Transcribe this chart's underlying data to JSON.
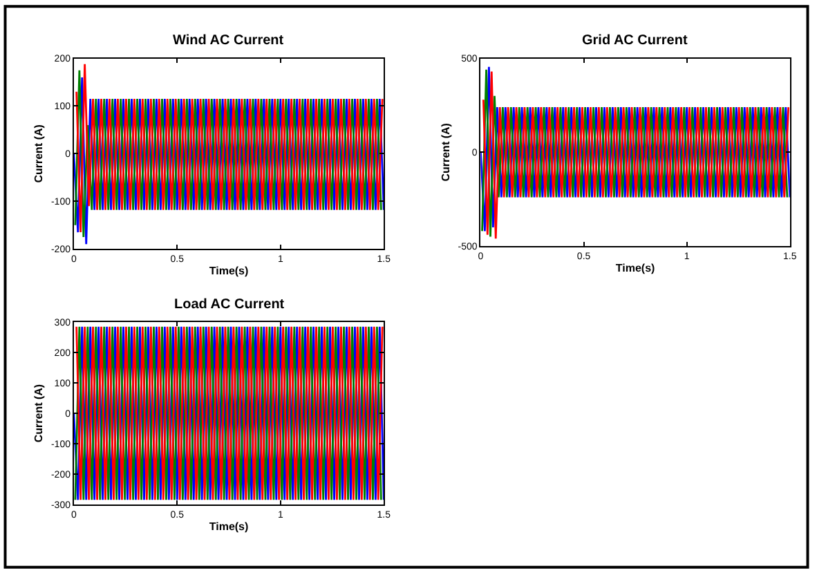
{
  "chart_data": [
    {
      "type": "line",
      "title": "Wind AC Current",
      "xlabel": "Time(s)",
      "ylabel": "Current (A)",
      "xlim": [
        0,
        1.5
      ],
      "xticks": [
        0,
        0.5,
        1,
        1.5
      ],
      "ylim": [
        -200,
        200
      ],
      "yticks": [
        -200,
        -100,
        0,
        100,
        200
      ],
      "series": [
        {
          "color": "#0000ff",
          "x": [
            0,
            0.02,
            0.04,
            0.06,
            0.08,
            0.1,
            0.12,
            0.14,
            0.16,
            0.18,
            0.2,
            0.22,
            0.24,
            0.26,
            0.28,
            0.3,
            0.32,
            0.34,
            0.36,
            0.38,
            0.4,
            0.42,
            0.44,
            0.46,
            0.48,
            0.5,
            0.52,
            0.54,
            0.56,
            0.58,
            0.6,
            0.62,
            0.64,
            0.66,
            0.68,
            0.7,
            0.72,
            0.74,
            0.76,
            0.78,
            0.8,
            0.82,
            0.84,
            0.86,
            0.88,
            0.9,
            0.92,
            0.94,
            0.96,
            0.98,
            1,
            1.02,
            1.04,
            1.06,
            1.08,
            1.1,
            1.12,
            1.14,
            1.16,
            1.18,
            1.2,
            1.22,
            1.24,
            1.26,
            1.28,
            1.3,
            1.32,
            1.34,
            1.36,
            1.38,
            1.4,
            1.42,
            1.44,
            1.46,
            1.48,
            1.5
          ],
          "values": [
            0,
            -165,
            160,
            -190,
            115,
            -118,
            115,
            -118,
            115,
            -118,
            115,
            -118,
            115,
            -118,
            115,
            -118,
            115,
            -118,
            115,
            -118,
            115,
            -118,
            115,
            -118,
            115,
            -118,
            115,
            -118,
            115,
            -118,
            115,
            -118,
            115,
            -118,
            115,
            -118,
            115,
            -118,
            115,
            -118,
            115,
            -118,
            115,
            -118,
            115,
            -118,
            115,
            -118,
            115,
            -118,
            115,
            -118,
            115,
            -118,
            115,
            -118,
            115,
            -118,
            115,
            -118,
            115,
            -118,
            115,
            -118,
            115,
            -118,
            115,
            -118,
            115,
            -118,
            115,
            -118,
            115,
            -118,
            115,
            -118
          ]
        },
        {
          "color": "#008000",
          "x": [
            0.007,
            0.027,
            0.047,
            0.067,
            0.087,
            0.107,
            0.127,
            0.147,
            0.167,
            0.187,
            0.207,
            0.227,
            0.247,
            0.267,
            0.287,
            0.307,
            0.327,
            0.347,
            0.367,
            0.387,
            0.407,
            0.427,
            0.447,
            0.467,
            0.487,
            0.507,
            0.527,
            0.547,
            0.567,
            0.587,
            0.607,
            0.627,
            0.647,
            0.667,
            0.687,
            0.707,
            0.727,
            0.747,
            0.767,
            0.787,
            0.807,
            0.827,
            0.847,
            0.867,
            0.887,
            0.907,
            0.927,
            0.947,
            0.967,
            0.987,
            1.007,
            1.027,
            1.047,
            1.067,
            1.087,
            1.107,
            1.127,
            1.147,
            1.167,
            1.187,
            1.207,
            1.227,
            1.247,
            1.267,
            1.287,
            1.307,
            1.327,
            1.347,
            1.367,
            1.387,
            1.407,
            1.427,
            1.447,
            1.467,
            1.487
          ],
          "values": [
            -150,
            175,
            -175,
            60,
            -118,
            115,
            -118,
            115,
            -118,
            115,
            -118,
            115,
            -118,
            115,
            -118,
            115,
            -118,
            115,
            -118,
            115,
            -118,
            115,
            -118,
            115,
            -118,
            115,
            -118,
            115,
            -118,
            115,
            -118,
            115,
            -118,
            115,
            -118,
            115,
            -118,
            115,
            -118,
            115,
            -118,
            115,
            -118,
            115,
            -118,
            115,
            -118,
            115,
            -118,
            115,
            -118,
            115,
            -118,
            115,
            -118,
            115,
            -118,
            115,
            -118,
            115,
            -118,
            115,
            -118,
            115,
            -118,
            115,
            -118,
            115,
            -118,
            115,
            -118,
            115,
            -118,
            115,
            -118
          ]
        },
        {
          "color": "#ff0000",
          "x": [
            0.013,
            0.033,
            0.053,
            0.073,
            0.093,
            0.113,
            0.133,
            0.153,
            0.173,
            0.193,
            0.213,
            0.233,
            0.253,
            0.273,
            0.293,
            0.313,
            0.333,
            0.353,
            0.373,
            0.393,
            0.413,
            0.433,
            0.453,
            0.473,
            0.493,
            0.513,
            0.533,
            0.553,
            0.573,
            0.593,
            0.613,
            0.633,
            0.653,
            0.673,
            0.693,
            0.713,
            0.733,
            0.753,
            0.773,
            0.793,
            0.813,
            0.833,
            0.853,
            0.873,
            0.893,
            0.913,
            0.933,
            0.953,
            0.973,
            0.993,
            1.013,
            1.033,
            1.053,
            1.073,
            1.093,
            1.113,
            1.133,
            1.153,
            1.173,
            1.193,
            1.213,
            1.233,
            1.253,
            1.273,
            1.293,
            1.313,
            1.333,
            1.353,
            1.373,
            1.393,
            1.413,
            1.433,
            1.453,
            1.473,
            1.493
          ],
          "values": [
            130,
            -165,
            188,
            -110,
            115,
            -118,
            115,
            -118,
            115,
            -118,
            115,
            -118,
            115,
            -118,
            115,
            -118,
            115,
            -118,
            115,
            -118,
            115,
            -118,
            115,
            -118,
            115,
            -118,
            115,
            -118,
            115,
            -118,
            115,
            -118,
            115,
            -118,
            115,
            -118,
            115,
            -118,
            115,
            -118,
            115,
            -118,
            115,
            -118,
            115,
            -118,
            115,
            -118,
            115,
            -118,
            115,
            -118,
            115,
            -118,
            115,
            -118,
            115,
            -118,
            115,
            -118,
            115,
            -118,
            115,
            -118,
            115,
            -118,
            115,
            -118,
            115,
            -118,
            115,
            -118,
            115,
            -118,
            115
          ]
        }
      ]
    },
    {
      "type": "line",
      "title": "Grid AC Current",
      "xlabel": "Time(s)",
      "ylabel": "Current (A)",
      "xlim": [
        0,
        1.5
      ],
      "xticks": [
        0,
        0.5,
        1,
        1.5
      ],
      "ylim": [
        -500,
        500
      ],
      "yticks": [
        -500,
        0,
        500
      ],
      "series": [
        {
          "color": "#0000ff",
          "x": [
            0,
            0.02,
            0.04,
            0.06,
            0.08,
            0.1,
            0.12,
            0.14,
            0.16,
            0.18,
            0.2,
            0.22,
            0.24,
            0.26,
            0.28,
            0.3,
            0.32,
            0.34,
            0.36,
            0.38,
            0.4,
            0.42,
            0.44,
            0.46,
            0.48,
            0.5,
            0.52,
            0.54,
            0.56,
            0.58,
            0.6,
            0.62,
            0.64,
            0.66,
            0.68,
            0.7,
            0.72,
            0.74,
            0.76,
            0.78,
            0.8,
            0.82,
            0.84,
            0.86,
            0.88,
            0.9,
            0.92,
            0.94,
            0.96,
            0.98,
            1,
            1.02,
            1.04,
            1.06,
            1.08,
            1.1,
            1.12,
            1.14,
            1.16,
            1.18,
            1.2,
            1.22,
            1.24,
            1.26,
            1.28,
            1.3,
            1.32,
            1.34,
            1.36,
            1.38,
            1.4,
            1.42,
            1.44,
            1.46,
            1.48,
            1.5
          ],
          "values": [
            0,
            -420,
            455,
            -400,
            240,
            -240,
            240,
            -240,
            240,
            -240,
            240,
            -240,
            240,
            -240,
            240,
            -240,
            240,
            -240,
            240,
            -240,
            240,
            -240,
            240,
            -240,
            240,
            -240,
            240,
            -240,
            240,
            -240,
            240,
            -240,
            240,
            -240,
            240,
            -240,
            240,
            -240,
            240,
            -240,
            240,
            -240,
            240,
            -240,
            240,
            -240,
            240,
            -240,
            240,
            -240,
            240,
            -240,
            240,
            -240,
            240,
            -240,
            240,
            -240,
            240,
            -240,
            240,
            -240,
            240,
            -240,
            240,
            -240,
            240,
            -240,
            240,
            -240,
            240,
            -240,
            240,
            -240,
            240,
            -240
          ]
        },
        {
          "color": "#008000",
          "x": [
            0.007,
            0.027,
            0.047,
            0.067,
            0.087,
            0.107,
            0.127,
            0.147,
            0.167,
            0.187,
            0.207,
            0.227,
            0.247,
            0.267,
            0.287,
            0.307,
            0.327,
            0.347,
            0.367,
            0.387,
            0.407,
            0.427,
            0.447,
            0.467,
            0.487,
            0.507,
            0.527,
            0.547,
            0.567,
            0.587,
            0.607,
            0.627,
            0.647,
            0.667,
            0.687,
            0.707,
            0.727,
            0.747,
            0.767,
            0.787,
            0.807,
            0.827,
            0.847,
            0.867,
            0.887,
            0.907,
            0.927,
            0.947,
            0.967,
            0.987,
            1.007,
            1.027,
            1.047,
            1.067,
            1.087,
            1.107,
            1.127,
            1.147,
            1.167,
            1.187,
            1.207,
            1.227,
            1.247,
            1.267,
            1.287,
            1.307,
            1.327,
            1.347,
            1.367,
            1.387,
            1.407,
            1.427,
            1.447,
            1.467,
            1.487
          ],
          "values": [
            -420,
            440,
            -450,
            300,
            -240,
            240,
            -240,
            240,
            -240,
            240,
            -240,
            240,
            -240,
            240,
            -240,
            240,
            -240,
            240,
            -240,
            240,
            -240,
            240,
            -240,
            240,
            -240,
            240,
            -240,
            240,
            -240,
            240,
            -240,
            240,
            -240,
            240,
            -240,
            240,
            -240,
            240,
            -240,
            240,
            -240,
            240,
            -240,
            240,
            -240,
            240,
            -240,
            240,
            -240,
            240,
            -240,
            240,
            -240,
            240,
            -240,
            240,
            -240,
            240,
            -240,
            240,
            -240,
            240,
            -240,
            240,
            -240,
            240,
            -240,
            240,
            -240,
            240,
            -240,
            240,
            -240,
            240,
            -240
          ]
        },
        {
          "color": "#ff0000",
          "x": [
            0.013,
            0.033,
            0.053,
            0.073,
            0.093,
            0.113,
            0.133,
            0.153,
            0.173,
            0.193,
            0.213,
            0.233,
            0.253,
            0.273,
            0.293,
            0.313,
            0.333,
            0.353,
            0.373,
            0.393,
            0.413,
            0.433,
            0.453,
            0.473,
            0.493,
            0.513,
            0.533,
            0.553,
            0.573,
            0.593,
            0.613,
            0.633,
            0.653,
            0.673,
            0.693,
            0.713,
            0.733,
            0.753,
            0.773,
            0.793,
            0.813,
            0.833,
            0.853,
            0.873,
            0.893,
            0.913,
            0.933,
            0.953,
            0.973,
            0.993,
            1.013,
            1.033,
            1.053,
            1.073,
            1.093,
            1.113,
            1.133,
            1.153,
            1.173,
            1.193,
            1.213,
            1.233,
            1.253,
            1.273,
            1.293,
            1.313,
            1.333,
            1.353,
            1.373,
            1.393,
            1.413,
            1.433,
            1.453,
            1.473,
            1.493
          ],
          "values": [
            280,
            -440,
            430,
            -460,
            240,
            -240,
            240,
            -240,
            240,
            -240,
            240,
            -240,
            240,
            -240,
            240,
            -240,
            240,
            -240,
            240,
            -240,
            240,
            -240,
            240,
            -240,
            240,
            -240,
            240,
            -240,
            240,
            -240,
            240,
            -240,
            240,
            -240,
            240,
            -240,
            240,
            -240,
            240,
            -240,
            240,
            -240,
            240,
            -240,
            240,
            -240,
            240,
            -240,
            240,
            -240,
            240,
            -240,
            240,
            -240,
            240,
            -240,
            240,
            -240,
            240,
            -240,
            240,
            -240,
            240,
            -240,
            240,
            -240,
            240,
            -240,
            240,
            -240,
            240,
            -240,
            240,
            -240,
            240
          ]
        }
      ]
    },
    {
      "type": "line",
      "title": "Load AC Current",
      "xlabel": "Time(s)",
      "ylabel": "Current (A)",
      "xlim": [
        0,
        1.5
      ],
      "xticks": [
        0,
        0.5,
        1,
        1.5
      ],
      "ylim": [
        -300,
        300
      ],
      "yticks": [
        -300,
        -200,
        -100,
        0,
        100,
        200,
        300
      ],
      "series": [
        {
          "color": "#0000ff",
          "x": [
            0,
            0.02,
            0.04,
            0.06,
            0.08,
            0.1,
            0.12,
            0.14,
            0.16,
            0.18,
            0.2,
            0.22,
            0.24,
            0.26,
            0.28,
            0.3,
            0.32,
            0.34,
            0.36,
            0.38,
            0.4,
            0.42,
            0.44,
            0.46,
            0.48,
            0.5,
            0.52,
            0.54,
            0.56,
            0.58,
            0.6,
            0.62,
            0.64,
            0.66,
            0.68,
            0.7,
            0.72,
            0.74,
            0.76,
            0.78,
            0.8,
            0.82,
            0.84,
            0.86,
            0.88,
            0.9,
            0.92,
            0.94,
            0.96,
            0.98,
            1,
            1.02,
            1.04,
            1.06,
            1.08,
            1.1,
            1.12,
            1.14,
            1.16,
            1.18,
            1.2,
            1.22,
            1.24,
            1.26,
            1.28,
            1.3,
            1.32,
            1.34,
            1.36,
            1.38,
            1.4,
            1.42,
            1.44,
            1.46,
            1.48,
            1.5
          ],
          "values": [
            0,
            -285,
            285,
            -285,
            285,
            -285,
            285,
            -285,
            285,
            -285,
            285,
            -285,
            285,
            -285,
            285,
            -285,
            285,
            -285,
            285,
            -285,
            285,
            -285,
            285,
            -285,
            285,
            -285,
            285,
            -285,
            285,
            -285,
            285,
            -285,
            285,
            -285,
            285,
            -285,
            285,
            -285,
            285,
            -285,
            285,
            -285,
            285,
            -285,
            285,
            -285,
            285,
            -285,
            285,
            -285,
            285,
            -285,
            285,
            -285,
            285,
            -285,
            285,
            -285,
            285,
            -285,
            285,
            -285,
            285,
            -285,
            285,
            -285,
            285,
            -285,
            285,
            -285,
            285,
            -285,
            285,
            -285,
            285,
            -285
          ]
        },
        {
          "color": "#008000",
          "x": [
            0.007,
            0.027,
            0.047,
            0.067,
            0.087,
            0.107,
            0.127,
            0.147,
            0.167,
            0.187,
            0.207,
            0.227,
            0.247,
            0.267,
            0.287,
            0.307,
            0.327,
            0.347,
            0.367,
            0.387,
            0.407,
            0.427,
            0.447,
            0.467,
            0.487,
            0.507,
            0.527,
            0.547,
            0.567,
            0.587,
            0.607,
            0.627,
            0.647,
            0.667,
            0.687,
            0.707,
            0.727,
            0.747,
            0.767,
            0.787,
            0.807,
            0.827,
            0.847,
            0.867,
            0.887,
            0.907,
            0.927,
            0.947,
            0.967,
            0.987,
            1.007,
            1.027,
            1.047,
            1.067,
            1.087,
            1.107,
            1.127,
            1.147,
            1.167,
            1.187,
            1.207,
            1.227,
            1.247,
            1.267,
            1.287,
            1.307,
            1.327,
            1.347,
            1.367,
            1.387,
            1.407,
            1.427,
            1.447,
            1.467,
            1.487
          ],
          "values": [
            -285,
            285,
            -285,
            285,
            -285,
            285,
            -285,
            285,
            -285,
            285,
            -285,
            285,
            -285,
            285,
            -285,
            285,
            -285,
            285,
            -285,
            285,
            -285,
            285,
            -285,
            285,
            -285,
            285,
            -285,
            285,
            -285,
            285,
            -285,
            285,
            -285,
            285,
            -285,
            285,
            -285,
            285,
            -285,
            285,
            -285,
            285,
            -285,
            285,
            -285,
            285,
            -285,
            285,
            -285,
            285,
            -285,
            285,
            -285,
            285,
            -285,
            285,
            -285,
            285,
            -285,
            285,
            -285,
            285,
            -285,
            285,
            -285,
            285,
            -285,
            285,
            -285,
            285,
            -285,
            285,
            -285,
            285,
            -285
          ]
        },
        {
          "color": "#ff0000",
          "x": [
            0.013,
            0.033,
            0.053,
            0.073,
            0.093,
            0.113,
            0.133,
            0.153,
            0.173,
            0.193,
            0.213,
            0.233,
            0.253,
            0.273,
            0.293,
            0.313,
            0.333,
            0.353,
            0.373,
            0.393,
            0.413,
            0.433,
            0.453,
            0.473,
            0.493,
            0.513,
            0.533,
            0.553,
            0.573,
            0.593,
            0.613,
            0.633,
            0.653,
            0.673,
            0.693,
            0.713,
            0.733,
            0.753,
            0.773,
            0.793,
            0.813,
            0.833,
            0.853,
            0.873,
            0.893,
            0.913,
            0.933,
            0.953,
            0.973,
            0.993,
            1.013,
            1.033,
            1.053,
            1.073,
            1.093,
            1.113,
            1.133,
            1.153,
            1.173,
            1.193,
            1.213,
            1.233,
            1.253,
            1.273,
            1.293,
            1.313,
            1.333,
            1.353,
            1.373,
            1.393,
            1.413,
            1.433,
            1.453,
            1.473,
            1.493
          ],
          "values": [
            285,
            -285,
            285,
            -285,
            285,
            -285,
            285,
            -285,
            285,
            -285,
            285,
            -285,
            285,
            -285,
            285,
            -285,
            285,
            -285,
            285,
            -285,
            285,
            -285,
            285,
            -285,
            285,
            -285,
            285,
            -285,
            285,
            -285,
            285,
            -285,
            285,
            -285,
            285,
            -285,
            285,
            -285,
            285,
            -285,
            285,
            -285,
            285,
            -285,
            285,
            -285,
            285,
            -285,
            285,
            -285,
            285,
            -285,
            285,
            -285,
            285,
            -285,
            285,
            -285,
            285,
            -285,
            285,
            -285,
            285,
            -285,
            285,
            -285,
            285,
            -285,
            285,
            -285,
            285,
            -285,
            285,
            -285,
            285
          ]
        }
      ]
    }
  ]
}
